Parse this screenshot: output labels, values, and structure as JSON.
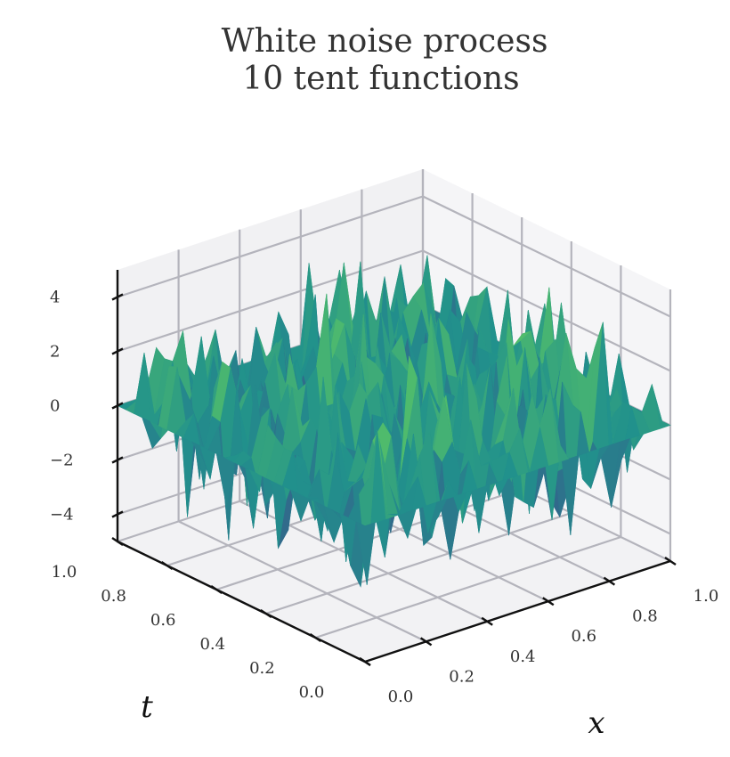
{
  "chart_data": {
    "type": "surface3d",
    "title": [
      "White noise process",
      "10 tent functions"
    ],
    "xlabel": "x",
    "ylabel": "t",
    "zlabel": "",
    "x_ticks": [
      "0.0",
      "0.2",
      "0.4",
      "0.6",
      "0.8",
      "1.0"
    ],
    "t_ticks": [
      "0.0",
      "0.2",
      "0.4",
      "0.6",
      "0.8",
      "1.0"
    ],
    "z_ticks": [
      "−4",
      "−2",
      "0",
      "2",
      "4"
    ],
    "z_tick_values": [
      -4,
      -2,
      0,
      2,
      4
    ],
    "xlim": [
      0,
      1
    ],
    "tlim": [
      0,
      1
    ],
    "zlim": [
      -5,
      5
    ],
    "grid": true,
    "colormap": "viridis",
    "colors": [
      "#440154",
      "#3b528b",
      "#21918c",
      "#5ec962",
      "#fde725"
    ],
    "description_values": {
      "surface_range": [
        -4.9,
        4.8
      ],
      "boundary_value": 0
    }
  }
}
